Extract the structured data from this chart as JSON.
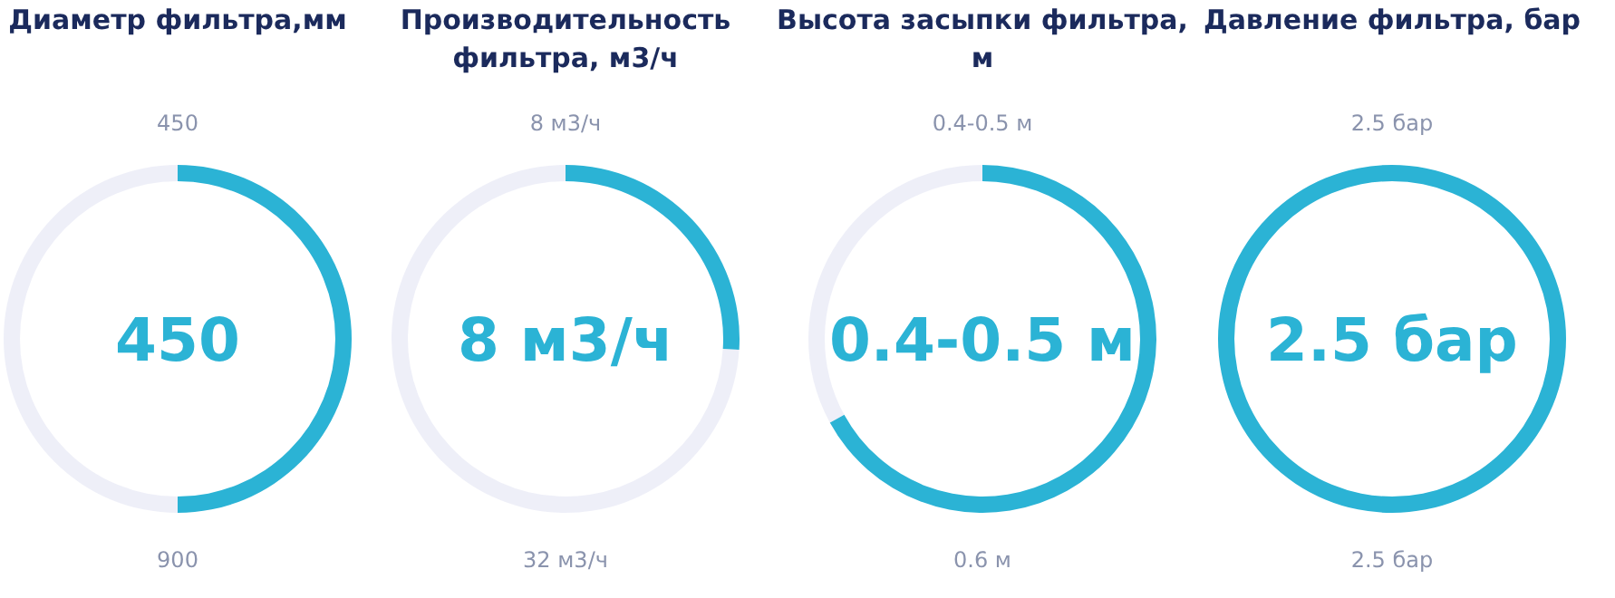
{
  "chart_data": [
    {
      "type": "donut",
      "title": "Диаметр фильтра,мм",
      "categories": [
        null,
        null
      ],
      "values": [
        50,
        50
      ],
      "colors": [
        "#2bb3d5",
        "#c8cbe8"
      ],
      "annotations": [
        "450",
        "450",
        "900"
      ]
    },
    {
      "type": "donut",
      "title": "Производительность фильтра, м3/ч",
      "categories": [
        null,
        null
      ],
      "values": [
        26,
        74
      ],
      "colors": [
        "#2bb3d5",
        "#c8cbe8"
      ],
      "annotations": [
        "8 м3/ч",
        "8 м3/ч",
        "32 м3/ч"
      ]
    },
    {
      "type": "donut",
      "title": "Высота засыпки фильтра, м",
      "categories": [
        null,
        null
      ],
      "values": [
        67,
        33
      ],
      "colors": [
        "#2bb3d5",
        "#c8cbe8"
      ],
      "annotations": [
        "0.4-0.5 м",
        "0.4-0.5 м",
        "0.6 м"
      ]
    },
    {
      "type": "donut",
      "title": "Давление фильтра, бар",
      "categories": [
        null
      ],
      "values": [
        100
      ],
      "colors": [
        "#2bb3d5"
      ],
      "annotations": [
        "2.5 бар",
        "2.5 бар",
        "2.5 бар"
      ]
    }
  ]
}
